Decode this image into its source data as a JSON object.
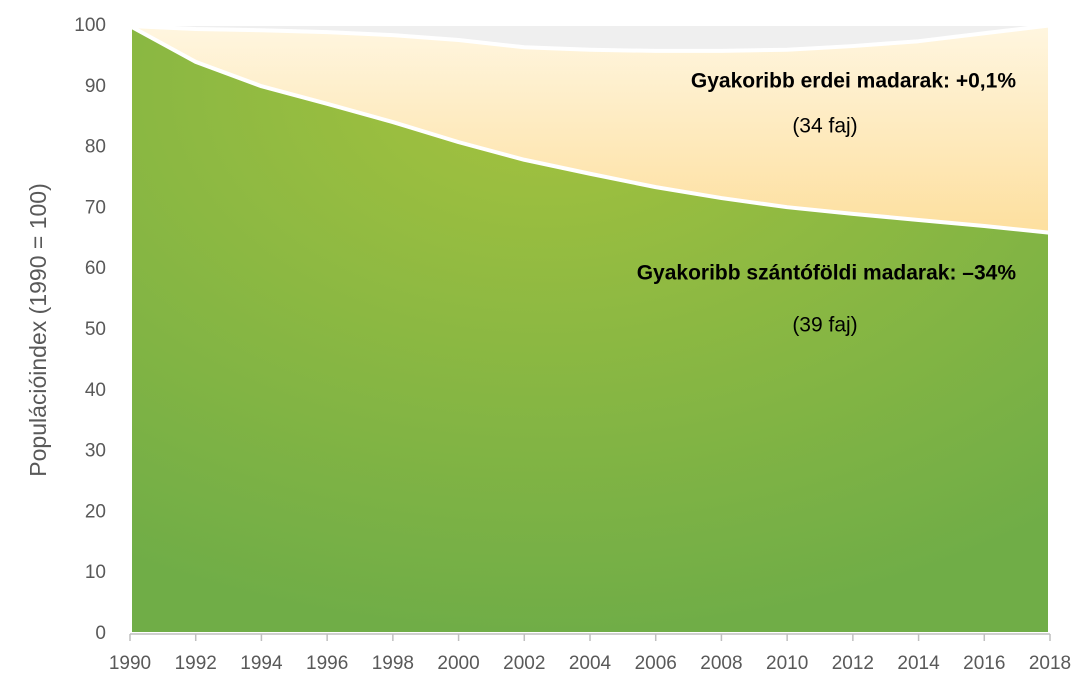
{
  "chart_data": {
    "type": "area",
    "y_label": "Populációindex (1990 = 100)",
    "x": [
      1990,
      1992,
      1994,
      1996,
      1998,
      2000,
      2002,
      2004,
      2006,
      2008,
      2010,
      2012,
      2014,
      2016,
      2018
    ],
    "series": [
      {
        "name": "Gyakoribb erdei madarak: +0,1%",
        "note": "(34 faj)",
        "color": "#f9b31f",
        "values": [
          100,
          99.5,
          99.3,
          99,
          98.5,
          97.7,
          96.5,
          96.1,
          95.9,
          95.9,
          96.1,
          96.7,
          97.5,
          98.8,
          100.1
        ]
      },
      {
        "name": "Gyakoribb szántóföldi madarak: –34%",
        "note": "(39 faj)",
        "color": "#70ad47",
        "values": [
          100,
          94.1,
          90.1,
          87.2,
          84.2,
          80.9,
          78.0,
          75.7,
          73.5,
          71.7,
          70.2,
          69.1,
          68.1,
          67.1,
          66
        ]
      }
    ],
    "xlim": [
      1990,
      2018
    ],
    "xticks": [
      1990,
      1992,
      1994,
      1996,
      1998,
      2000,
      2002,
      2004,
      2006,
      2008,
      2010,
      2012,
      2014,
      2016,
      2018
    ],
    "ylim": [
      0,
      100
    ],
    "yticks": [
      0,
      10,
      20,
      30,
      40,
      50,
      60,
      70,
      80,
      90,
      100
    ]
  }
}
